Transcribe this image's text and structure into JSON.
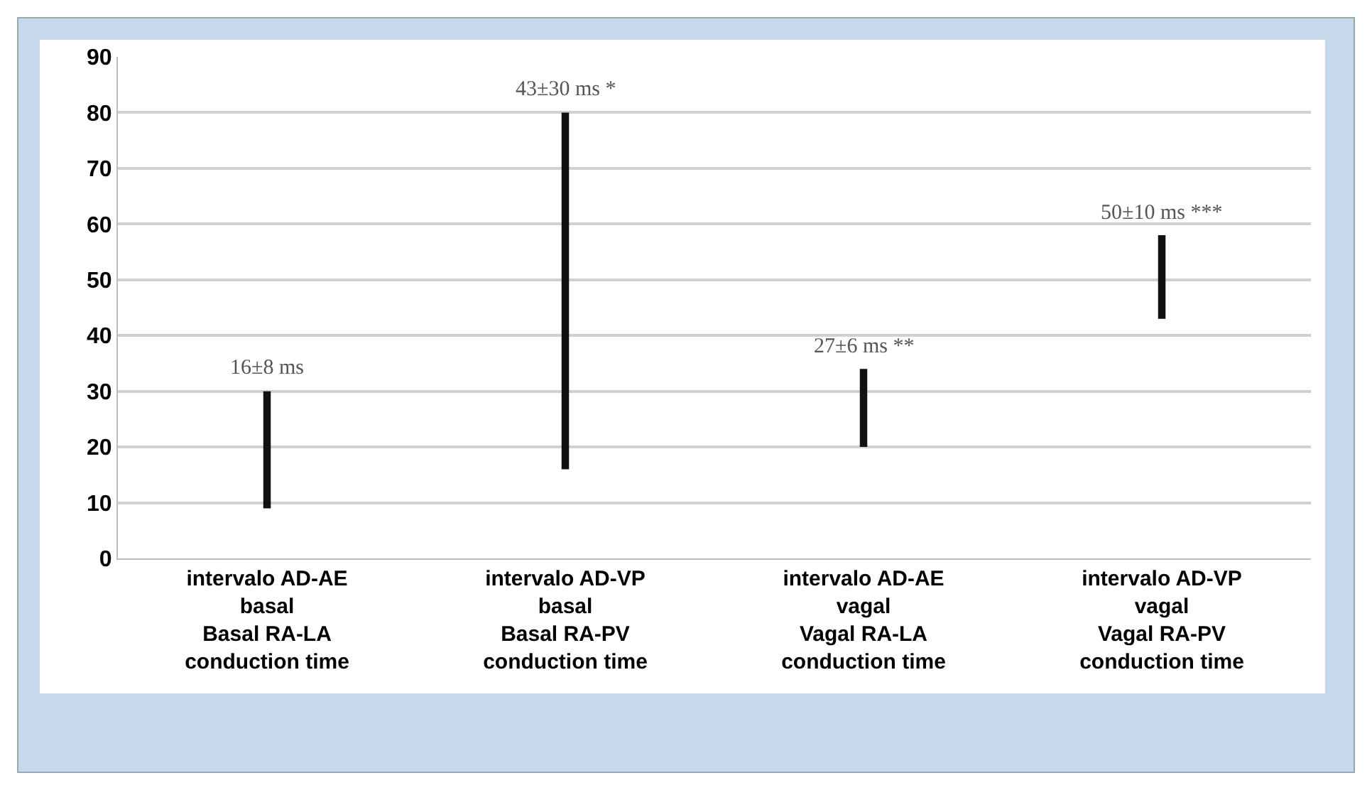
{
  "chart_data": {
    "type": "bar",
    "categories": [
      "intervalo AD-AE\nbasal\nBasal RA-LA\nconduction time",
      "intervalo AD-VP\nbasal\nBasal RA-PV\nconduction time",
      "intervalo AD-AE\nvagal\nVagal RA-LA\nconduction time",
      "intervalo AD-VP\nvagal\nVagal RA-PV\nconduction time"
    ],
    "base": [
      9,
      16,
      20,
      43
    ],
    "values": [
      21,
      64,
      14,
      15
    ],
    "annotations": [
      {
        "text": "16±8 ms",
        "x": "intervalo AD-AE\nbasal\nBasal RA-LA\nconduction time",
        "y": 30
      },
      {
        "text": "43±30 ms *",
        "x": "intervalo AD-VP\nbasal\nBasal RA-PV\nconduction time",
        "y": 80
      },
      {
        "text": "27±6 ms **",
        "x": "intervalo AD-AE\nvagal\nVagal RA-LA\nconduction time",
        "y": 34
      },
      {
        "text": "50±10 ms ***",
        "x": "intervalo AD-VP\nvagal\nVagal RA-PV\nconduction time",
        "y": 58
      }
    ],
    "color": "#111111",
    "ylim": [
      0,
      90
    ],
    "yticks": [
      0,
      10,
      20,
      30,
      40,
      50,
      60,
      70,
      80,
      90
    ],
    "grid": "y"
  }
}
